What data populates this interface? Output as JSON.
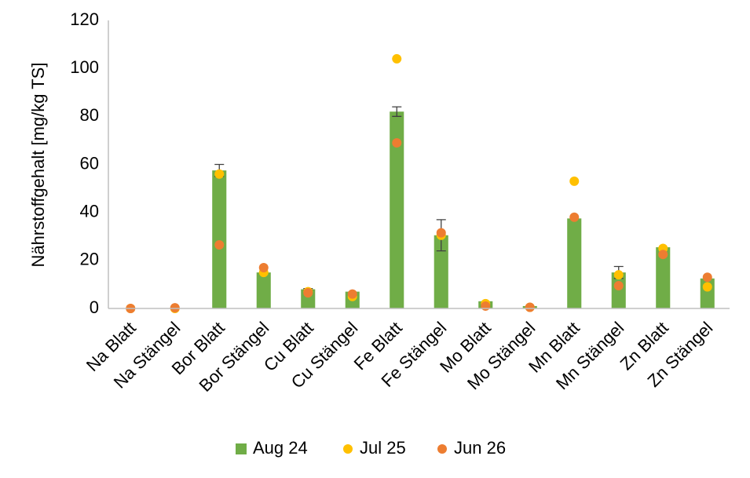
{
  "chart_data": {
    "type": "bar",
    "y_label": "Nährstoffgehalt [mg/kg TS]",
    "categories": [
      "Na Blatt",
      "Na Stängel",
      "Bor Blatt",
      "Bor Stängel",
      "Cu Blatt",
      "Cu Stängel",
      "Fe Blatt",
      "Fe Stängel",
      "Mo Blatt",
      "Mo Stängel",
      "Mn Blatt",
      "Mn Stängel",
      "Zn Blatt",
      "Zn Stängel"
    ],
    "series": [
      {
        "name": "Aug 24",
        "type": "bar",
        "color": "#70ad47",
        "values": [
          0,
          0,
          57.5,
          15,
          8,
          7,
          82,
          30.5,
          3,
          1,
          37.5,
          15,
          25.5,
          12.5
        ],
        "errors": [
          null,
          null,
          2.5,
          null,
          0.3,
          null,
          2,
          6.5,
          null,
          null,
          null,
          2.5,
          null,
          null
        ]
      },
      {
        "name": "Jul 25",
        "type": "scatter",
        "color": "#ffc000",
        "values": [
          0,
          0,
          56,
          15,
          7,
          5,
          104,
          30.5,
          2,
          0.5,
          53,
          14,
          25,
          9
        ]
      },
      {
        "name": "Jun 26",
        "type": "scatter",
        "color": "#ed7d31",
        "values": [
          0,
          0.3,
          26.5,
          17,
          6.5,
          6,
          69,
          31.5,
          1,
          0.5,
          38,
          9.5,
          22.5,
          13
        ]
      }
    ],
    "ylim": [
      0,
      120
    ],
    "yticks": [
      0,
      20,
      40,
      60,
      80,
      100,
      120
    ],
    "grid": false,
    "legend": "bottom"
  }
}
